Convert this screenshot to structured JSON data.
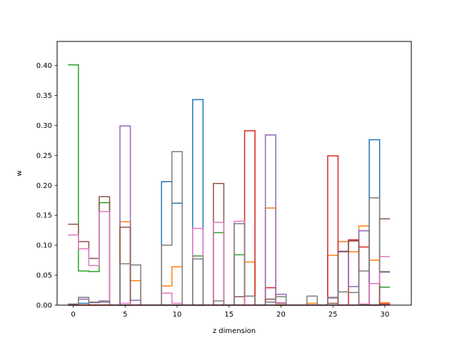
{
  "chart_data": {
    "type": "step",
    "xlabel": "z dimension",
    "ylabel": "w",
    "xlim": [
      -1.55,
      32.55
    ],
    "ylim": [
      0,
      0.44
    ],
    "x_ticks": [
      0,
      5,
      10,
      15,
      20,
      25,
      30
    ],
    "y_ticks": [
      0.0,
      0.05,
      0.1,
      0.15,
      0.2,
      0.25,
      0.3,
      0.35,
      0.4
    ],
    "y_tick_labels": [
      "0.00",
      "0.05",
      "0.10",
      "0.15",
      "0.20",
      "0.25",
      "0.30",
      "0.35",
      "0.40"
    ],
    "x_tick_labels": [
      "0",
      "5",
      "10",
      "15",
      "20",
      "25",
      "30"
    ],
    "grid": false,
    "series": [
      {
        "color": "#1f77b4",
        "values": [
          0,
          0.003,
          0,
          0,
          0,
          0,
          0,
          0,
          0,
          0.206,
          0.17,
          0,
          0.343,
          0,
          0,
          0,
          0,
          0,
          0,
          0,
          0,
          0,
          0,
          0,
          0,
          0,
          0,
          0,
          0,
          0.276,
          0
        ]
      },
      {
        "color": "#ff7f0e",
        "values": [
          0,
          0,
          0,
          0,
          0,
          0.139,
          0.041,
          0,
          0,
          0.032,
          0.064,
          0,
          0,
          0,
          0,
          0,
          0,
          0.072,
          0,
          0.162,
          0,
          0,
          0,
          0.003,
          0,
          0.083,
          0.106,
          0.089,
          0.132,
          0.075,
          0.004
        ]
      },
      {
        "color": "#2ca02c",
        "values": [
          0.401,
          0.057,
          0.056,
          0.171,
          0,
          0,
          0,
          0,
          0,
          0,
          0,
          0,
          0.082,
          0,
          0.121,
          0,
          0.084,
          0,
          0,
          0,
          0,
          0,
          0,
          0,
          0,
          0,
          0,
          0,
          0,
          0,
          0.03
        ]
      },
      {
        "color": "#d62728",
        "values": [
          0,
          0,
          0,
          0,
          0,
          0,
          0,
          0,
          0,
          0,
          0,
          0,
          0,
          0,
          0,
          0,
          0,
          0.291,
          0,
          0.029,
          0,
          0,
          0,
          0,
          0,
          0.249,
          0,
          0.109,
          0.097,
          0,
          0.002
        ]
      },
      {
        "color": "#9467bd",
        "values": [
          0,
          0.01,
          0.004,
          0.005,
          0,
          0.299,
          0.008,
          0,
          0,
          0,
          0,
          0,
          0,
          0,
          0,
          0,
          0,
          0,
          0,
          0.284,
          0.018,
          0,
          0,
          0,
          0,
          0.012,
          0.09,
          0.031,
          0.124,
          0,
          0.055
        ]
      },
      {
        "color": "#8c564b",
        "values": [
          0.135,
          0.106,
          0.078,
          0.181,
          0,
          0.13,
          0,
          0,
          0,
          0,
          0,
          0,
          0,
          0,
          0.203,
          0,
          0.014,
          0,
          0,
          0.01,
          0.003,
          0,
          0,
          0,
          0,
          0.003,
          0.089,
          0.107,
          0,
          0,
          0.144
        ]
      },
      {
        "color": "#e377c2",
        "values": [
          0.117,
          0.094,
          0.066,
          0.156,
          0,
          0.003,
          0,
          0,
          0,
          0.02,
          0.003,
          0,
          0.128,
          0,
          0.138,
          0,
          0.14,
          0,
          0,
          0,
          0.004,
          0,
          0,
          0,
          0,
          0,
          0,
          0,
          0.002,
          0.036,
          0.081
        ]
      },
      {
        "color": "#7f7f7f",
        "values": [
          0.002,
          0.013,
          0.005,
          0.007,
          0,
          0.069,
          0.067,
          0,
          0,
          0.1,
          0.256,
          0,
          0.077,
          0,
          0.007,
          0,
          0.136,
          0.015,
          0,
          0.005,
          0.014,
          0,
          0,
          0.015,
          0,
          0.013,
          0.022,
          0.021,
          0.057,
          0.179,
          0.056
        ]
      }
    ]
  }
}
